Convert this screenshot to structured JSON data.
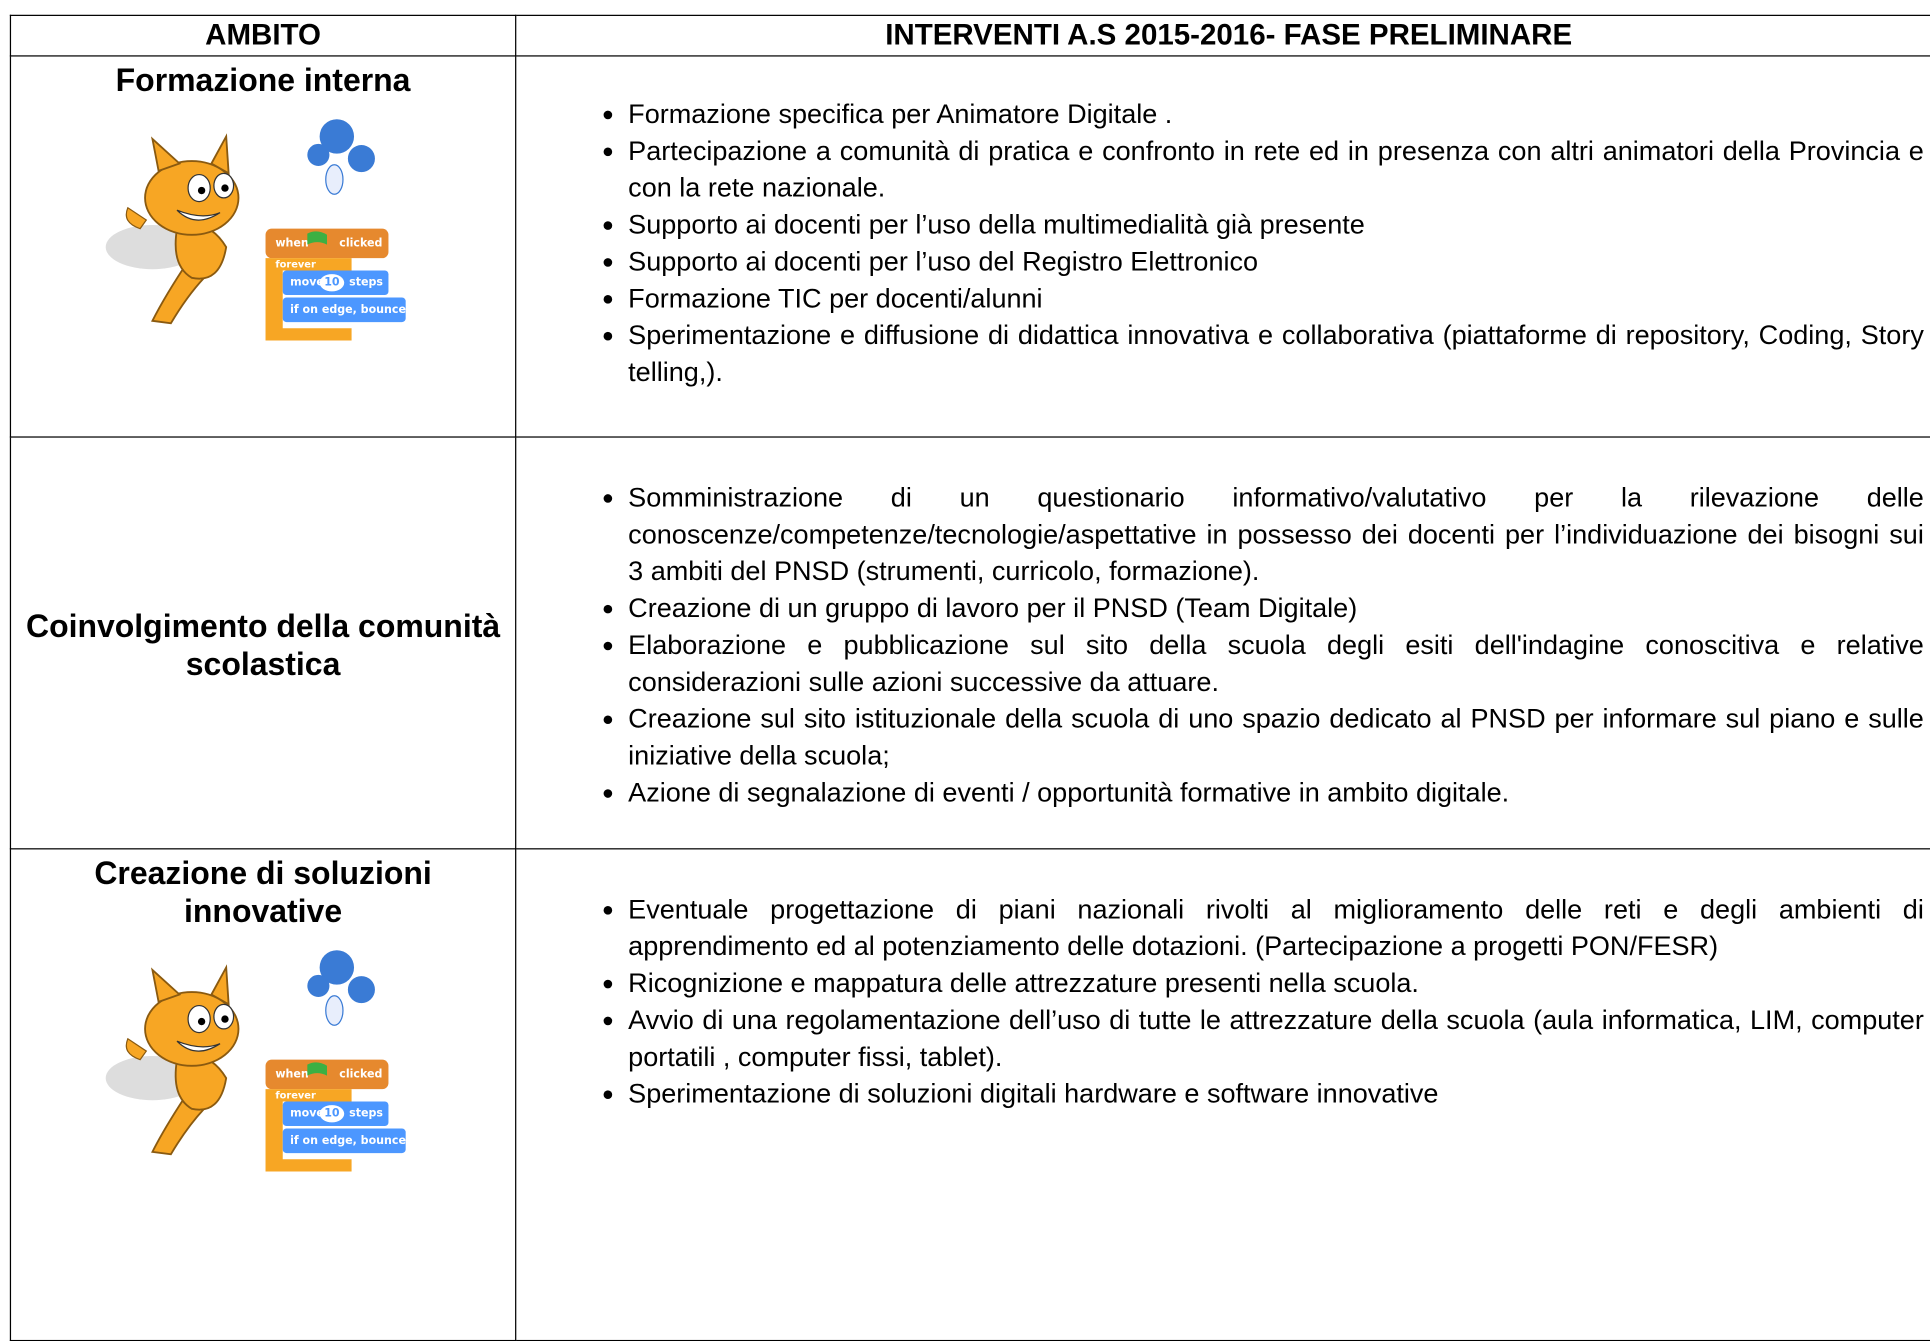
{
  "table": {
    "header": [
      "AMBITO",
      "INTERVENTI A.S 2015-2016- FASE PRELIMINARE"
    ],
    "rows": [
      {
        "ambito": "Formazione interna",
        "items": [
          "Formazione specifica per Animatore Digitale .",
          "Partecipazione a comunità di pratica e confronto in rete ed in presenza con altri animatori della Provincia e con la rete nazionale.",
          "Supporto ai docenti per l’uso della multimedialità già presente",
          "Supporto ai docenti per l’uso del Registro Elettronico",
          "Formazione TIC per docenti/alunni",
          "Sperimentazione e diffusione di didattica innovativa e collaborativa (piattaforme di repository, Coding, Story telling,)."
        ]
      },
      {
        "ambito": "Coinvolgimento della comunità scolastica",
        "items": [
          "Somministrazione di un questionario informativo/valutativo per la rilevazione delle conoscenze/competenze/tecnologie/aspettative in possesso dei docenti per l’individuazione dei bisogni sui 3 ambiti del PNSD (strumenti, curricolo, formazione).",
          "Creazione di un gruppo di lavoro per il PNSD (Team Digitale)",
          "Elaborazione e pubblicazione sul sito della scuola degli esiti dell'indagine conoscitiva e relative considerazioni sulle azioni successive da attuare.",
          "Creazione sul sito istituzionale della scuola di uno spazio dedicato al PNSD per informare sul piano e sulle iniziative della scuola;",
          "Azione di segnalazione di eventi / opportunità formative in ambito digitale."
        ]
      },
      {
        "ambito": "Creazione di soluzioni innovative",
        "items": [
          "Eventuale progettazione di piani nazionali rivolti al miglioramento delle reti e degli ambienti di apprendimento ed al potenziamento delle dotazioni. (Partecipazione a progetti PON/FESR)",
          "Ricognizione e mappatura delle attrezzature presenti nella scuola.",
          "Avvio di una regolamentazione dell’uso di tutte le attrezzature della scuola (aula informatica, LIM, computer portatili , computer fissi, tablet).",
          "Sperimentazione di soluzioni digitali hardware e software innovative"
        ]
      }
    ]
  },
  "illustration": {
    "blocks": [
      "when",
      "clicked",
      "forever",
      "move",
      "10",
      "steps",
      "if on edge, bounce"
    ]
  }
}
